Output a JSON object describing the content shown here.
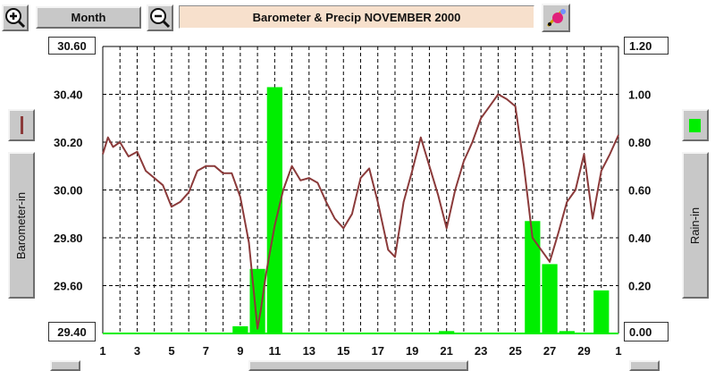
{
  "toolbar": {
    "range_label": "Month",
    "zoom_in_icon": "zoom-in-icon",
    "zoom_out_icon": "zoom-out-icon",
    "tool_icon": "paint-tool-icon"
  },
  "chart_title": "Barometer & Precip  NOVEMBER 2000",
  "axes": {
    "left_label": "Barometer-in",
    "right_label": "Rain-in",
    "left_top": "30.60",
    "left_bottom": "29.40",
    "right_top": "1.20",
    "right_bottom": "0.00"
  },
  "colors": {
    "barometer": "#8b3a3a",
    "rain": "#00ee00",
    "title_bg": "#f7e0cc",
    "button_bg": "#c8c8c8"
  },
  "chart_data": {
    "type": "line+bar",
    "x_ticks": [
      "1",
      "3",
      "5",
      "7",
      "9",
      "11",
      "13",
      "15",
      "17",
      "19",
      "21",
      "23",
      "25",
      "27",
      "29",
      "1"
    ],
    "y_left": {
      "ticks": [
        "30.60",
        "30.40",
        "30.20",
        "30.00",
        "29.80",
        "29.60",
        "29.40"
      ],
      "range": [
        29.4,
        30.6
      ]
    },
    "y_right": {
      "ticks": [
        "1.20",
        "1.00",
        "0.80",
        "0.60",
        "0.40",
        "0.20",
        "0.00"
      ],
      "range": [
        0,
        1.2
      ]
    },
    "grid": true,
    "barometer": {
      "day": [
        1,
        1.3,
        1.6,
        2,
        2.5,
        3,
        3.5,
        4,
        4.5,
        5,
        5.5,
        6,
        6.5,
        7,
        7.5,
        8,
        8.5,
        9,
        9.5,
        10,
        10.2,
        10.5,
        11,
        11.5,
        12,
        12.5,
        13,
        13.5,
        14,
        14.5,
        15,
        15.5,
        16,
        16.5,
        17,
        17.3,
        17.6,
        18,
        18.5,
        19,
        19.5,
        20,
        20.5,
        21,
        21.5,
        22,
        22.5,
        23,
        23.5,
        24,
        24.5,
        25,
        25.5,
        26,
        26.5,
        27,
        27.5,
        28,
        28.5,
        29,
        29.5,
        30,
        30.5,
        31
      ],
      "value": [
        30.15,
        30.22,
        30.18,
        30.2,
        30.14,
        30.16,
        30.08,
        30.05,
        30.02,
        29.93,
        29.95,
        29.99,
        30.08,
        30.1,
        30.1,
        30.07,
        30.07,
        29.97,
        29.78,
        29.42,
        29.5,
        29.65,
        29.85,
        30.0,
        30.1,
        30.04,
        30.05,
        30.03,
        29.95,
        29.88,
        29.84,
        29.9,
        30.05,
        30.09,
        29.95,
        29.85,
        29.75,
        29.72,
        29.95,
        30.08,
        30.22,
        30.1,
        29.98,
        29.84,
        30.0,
        30.12,
        30.2,
        30.3,
        30.35,
        30.4,
        30.38,
        30.35,
        30.1,
        29.8,
        29.75,
        29.7,
        29.82,
        29.95,
        30.0,
        30.15,
        29.88,
        30.08,
        30.15,
        30.23
      ]
    },
    "rain": {
      "day": [
        9,
        10,
        11,
        21,
        26,
        27,
        28,
        30
      ],
      "value": [
        0.03,
        0.27,
        1.03,
        0.01,
        0.47,
        0.29,
        0.01,
        0.18
      ]
    }
  }
}
